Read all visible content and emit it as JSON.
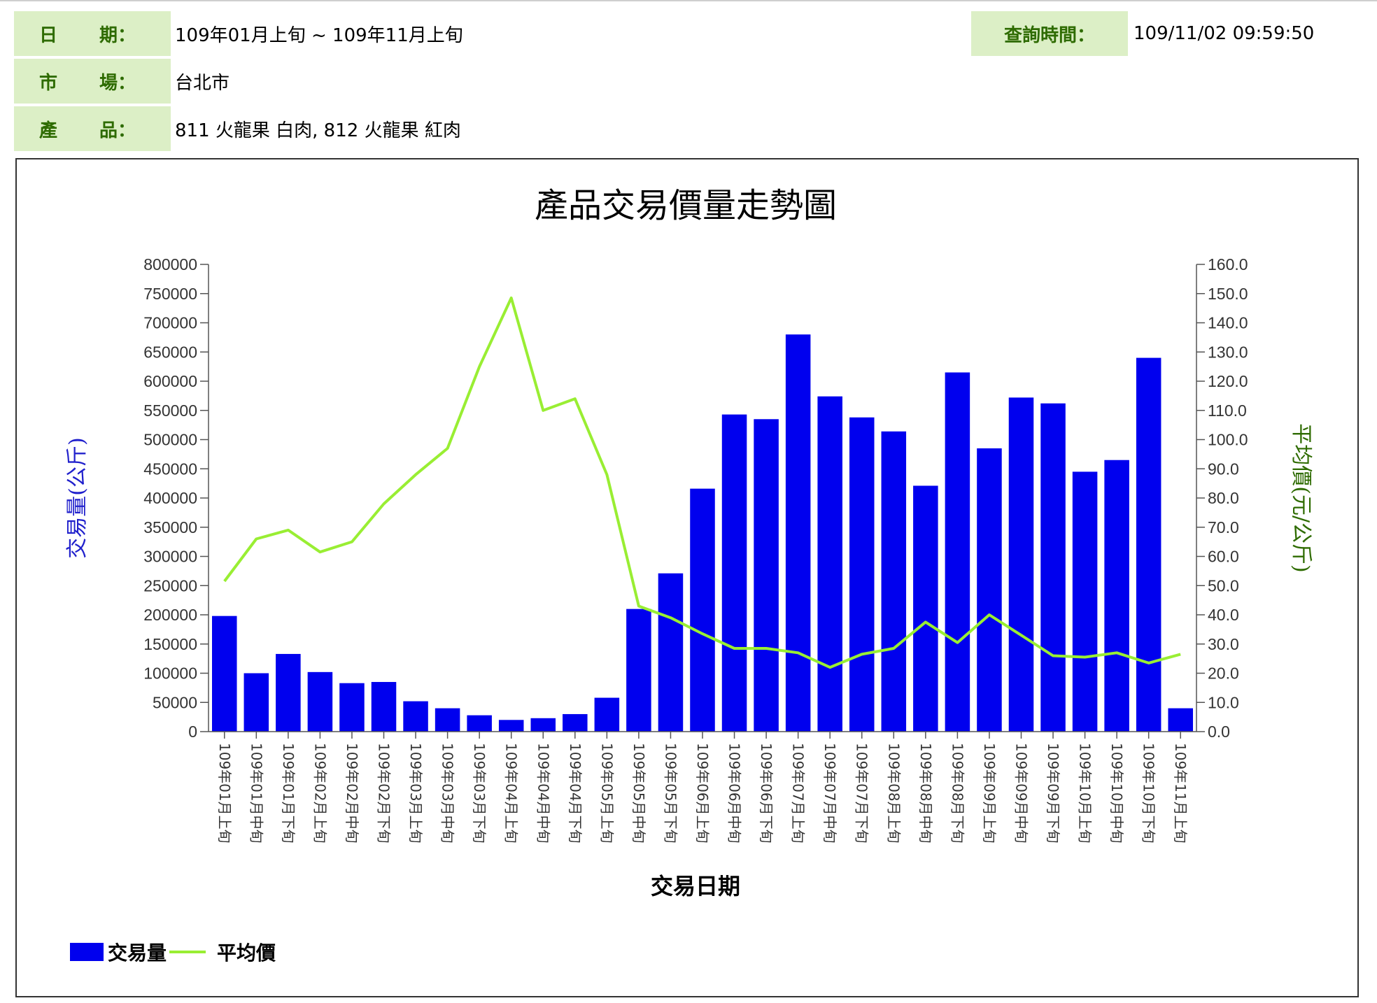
{
  "info": {
    "date_label_chars": [
      "日",
      "期："
    ],
    "date_value": "109年01月上旬 ~ 109年11月上旬",
    "query_label": "查詢時間：",
    "query_value": "109/11/02 09:59:50",
    "market_label_chars": [
      "市",
      "場："
    ],
    "market_value": "台北市",
    "product_label_chars": [
      "產",
      "品："
    ],
    "product_value": "811 火龍果 白肉, 812 火龍果 紅肉"
  },
  "colors": {
    "label_bg": "#dcefc6",
    "label_text": "#2e6b00",
    "bar": "#0000ee",
    "line": "#99ee33",
    "left_axis_title": "#2020cc",
    "right_axis_title": "#2e6b00"
  },
  "chart_data": {
    "type": "bar+line",
    "title": "產品交易價量走勢圖",
    "xlabel": "交易日期",
    "ylabel_left": "交易量(公斤)",
    "ylabel_right": "平均價(元/公斤)",
    "ylim_left": [
      0,
      800000
    ],
    "ylim_right": [
      0,
      160
    ],
    "yticks_left": [
      "0",
      "50000",
      "100000",
      "150000",
      "200000",
      "250000",
      "300000",
      "350000",
      "400000",
      "450000",
      "500000",
      "550000",
      "600000",
      "650000",
      "700000",
      "750000",
      "800000"
    ],
    "yticks_right": [
      "0.0",
      "10.0",
      "20.0",
      "30.0",
      "40.0",
      "50.0",
      "60.0",
      "70.0",
      "80.0",
      "90.0",
      "100.0",
      "110.0",
      "120.0",
      "130.0",
      "140.0",
      "150.0",
      "160.0"
    ],
    "categories": [
      "109年01月上旬",
      "109年01月中旬",
      "109年01月下旬",
      "109年02月上旬",
      "109年02月中旬",
      "109年02月下旬",
      "109年03月上旬",
      "109年03月中旬",
      "109年03月下旬",
      "109年04月上旬",
      "109年04月中旬",
      "109年04月下旬",
      "109年05月上旬",
      "109年05月中旬",
      "109年05月下旬",
      "109年06月上旬",
      "109年06月中旬",
      "109年06月下旬",
      "109年07月上旬",
      "109年07月中旬",
      "109年07月下旬",
      "109年08月上旬",
      "109年08月中旬",
      "109年08月下旬",
      "109年09月上旬",
      "109年09月中旬",
      "109年09月下旬",
      "109年10月上旬",
      "109年10月中旬",
      "109年10月下旬",
      "109年11月上旬"
    ],
    "series": [
      {
        "name": "交易量",
        "type": "bar",
        "axis": "left",
        "values": [
          198000,
          100000,
          133000,
          102000,
          83000,
          85000,
          52000,
          40000,
          28000,
          20000,
          23000,
          30000,
          58000,
          210000,
          271000,
          416000,
          543000,
          535000,
          680000,
          574000,
          538000,
          514000,
          421000,
          615000,
          485000,
          572000,
          562000,
          445000,
          465000,
          640000,
          40000
        ]
      },
      {
        "name": "平均價",
        "type": "line",
        "axis": "right",
        "values": [
          51.5,
          66,
          69,
          61.5,
          65,
          78,
          88,
          97,
          125,
          148.5,
          110,
          114,
          88,
          43,
          39,
          33.5,
          28.5,
          28.5,
          27,
          22,
          26.5,
          28.5,
          37.5,
          30.5,
          40,
          33,
          26,
          25.5,
          27,
          23.5,
          26.5
        ]
      }
    ],
    "legend": {
      "position": "bottom-left",
      "entries": [
        "交易量",
        "平均價"
      ]
    },
    "grid": false
  }
}
